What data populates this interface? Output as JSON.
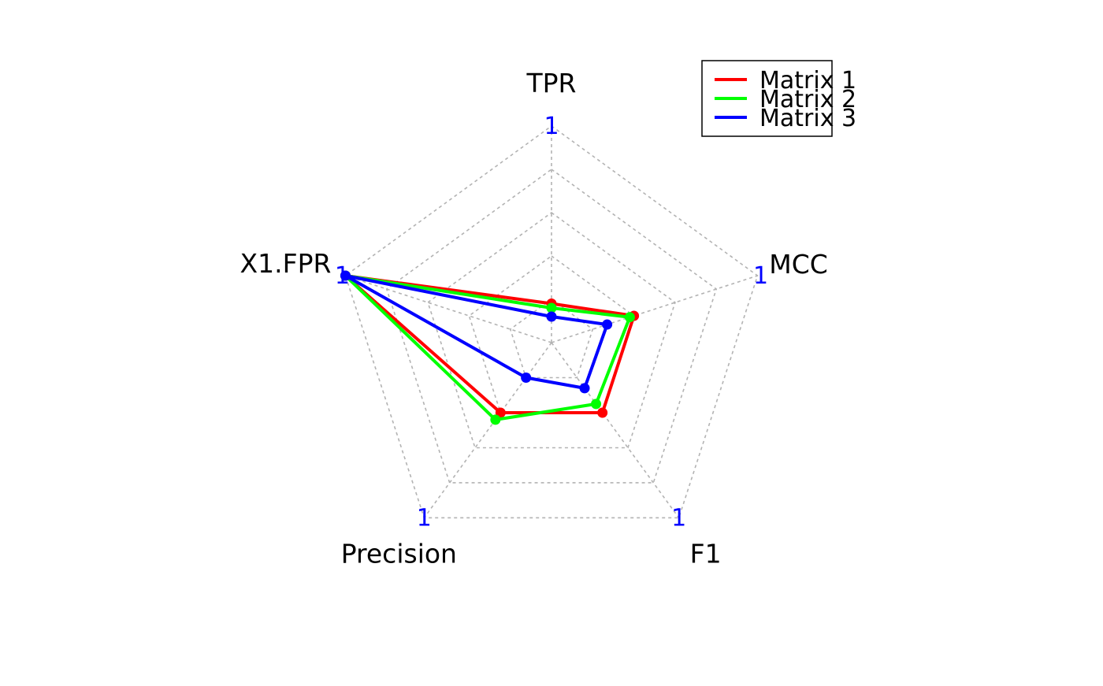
{
  "chart_data": {
    "type": "radar",
    "axes": [
      "TPR",
      "MCC",
      "F1",
      "Precision",
      "X1.FPR"
    ],
    "axis_max_labels": [
      "1",
      "1",
      "1",
      "1",
      "1"
    ],
    "range": [
      0,
      1
    ],
    "grid_levels": 5,
    "grid": true,
    "legend_position": "top-right",
    "max_label_color": "#0000ff",
    "grid_color": "#b3b3b3",
    "series": [
      {
        "name": "Matrix 1",
        "color": "#ff0000",
        "values": [
          0.18,
          0.4,
          0.4,
          0.4,
          1.0
        ]
      },
      {
        "name": "Matrix 2",
        "color": "#00ff00",
        "values": [
          0.16,
          0.38,
          0.35,
          0.44,
          1.0
        ]
      },
      {
        "name": "Matrix 3",
        "color": "#0000ff",
        "values": [
          0.12,
          0.27,
          0.26,
          0.2,
          1.0
        ]
      }
    ]
  }
}
